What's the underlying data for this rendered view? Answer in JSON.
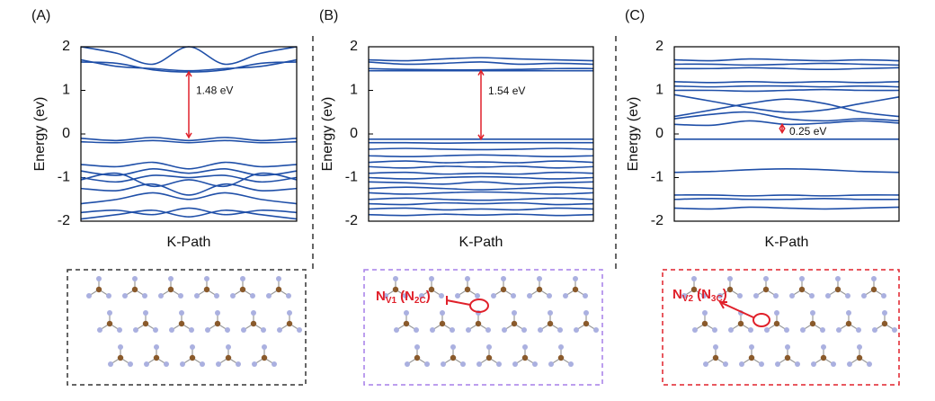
{
  "chart_data": [
    {
      "type": "line",
      "title": "(A)",
      "xlabel": "K-Path",
      "ylabel": "Energy (ev)",
      "categories": [
        null,
        null,
        null,
        null,
        null,
        null,
        null
      ],
      "ylim": [
        -2,
        2
      ],
      "yticks": [
        -2,
        -1,
        0,
        1,
        2
      ],
      "series": [
        {
          "color": "#1f4fa8",
          "values": [
            1.65,
            1.62,
            1.47,
            1.42,
            1.47,
            1.62,
            1.65
          ]
        },
        {
          "color": "#1f4fa8",
          "values": [
            2.0,
            1.85,
            1.6,
            2.0,
            1.6,
            1.85,
            2.0
          ]
        },
        {
          "color": "#1f4fa8",
          "values": [
            1.7,
            1.55,
            1.5,
            1.45,
            1.5,
            1.55,
            1.7
          ]
        },
        {
          "color": "#1f4fa8",
          "values": [
            -0.1,
            -0.15,
            -0.08,
            -0.15,
            -0.08,
            -0.15,
            -0.1
          ]
        },
        {
          "color": "#1f4fa8",
          "values": [
            -0.18,
            -0.2,
            -0.15,
            -0.2,
            -0.15,
            -0.2,
            -0.18
          ]
        },
        {
          "color": "#1f4fa8",
          "values": [
            -0.7,
            -0.75,
            -0.65,
            -0.8,
            -0.65,
            -0.75,
            -0.7
          ]
        },
        {
          "color": "#1f4fa8",
          "values": [
            -0.85,
            -0.95,
            -0.8,
            -0.9,
            -0.8,
            -0.95,
            -0.85
          ]
        },
        {
          "color": "#1f4fa8",
          "values": [
            -1.0,
            -1.1,
            -0.95,
            -1.0,
            -0.95,
            -1.1,
            -1.0
          ]
        },
        {
          "color": "#1f4fa8",
          "values": [
            -1.05,
            -0.9,
            -1.2,
            -1.05,
            -1.2,
            -0.9,
            -1.05
          ]
        },
        {
          "color": "#1f4fa8",
          "values": [
            -1.25,
            -1.3,
            -1.15,
            -1.4,
            -1.15,
            -1.3,
            -1.25
          ]
        },
        {
          "color": "#1f4fa8",
          "values": [
            -1.6,
            -1.5,
            -1.35,
            -1.5,
            -1.35,
            -1.5,
            -1.6
          ]
        },
        {
          "color": "#1f4fa8",
          "values": [
            -1.8,
            -1.75,
            -1.85,
            -1.7,
            -1.85,
            -1.75,
            -1.8
          ]
        },
        {
          "color": "#1f4fa8",
          "values": [
            -1.95,
            -1.85,
            -1.75,
            -1.9,
            -1.75,
            -1.85,
            -1.95
          ]
        }
      ],
      "annotation": {
        "text": "1.48 eV",
        "from": -0.08,
        "to": 1.42,
        "color": "#e0202a"
      }
    },
    {
      "type": "line",
      "title": "(B)",
      "xlabel": "K-Path",
      "ylabel": "Energy (ev)",
      "categories": [
        null,
        null,
        null,
        null,
        null,
        null,
        null
      ],
      "ylim": [
        -2,
        2
      ],
      "yticks": [
        -2,
        -1,
        0,
        1,
        2
      ],
      "series": [
        {
          "color": "#1f4fa8",
          "values": [
            1.7,
            1.68,
            1.72,
            1.75,
            1.72,
            1.7,
            1.68
          ]
        },
        {
          "color": "#1f4fa8",
          "values": [
            1.65,
            1.6,
            1.62,
            1.65,
            1.6,
            1.62,
            1.6
          ]
        },
        {
          "color": "#1f4fa8",
          "values": [
            1.5,
            1.48,
            1.47,
            1.47,
            1.48,
            1.5,
            1.5
          ]
        },
        {
          "color": "#1f4fa8",
          "values": [
            1.45,
            1.45,
            1.45,
            1.45,
            1.45,
            1.45,
            1.45
          ]
        },
        {
          "color": "#1f4fa8",
          "values": [
            -0.12,
            -0.12,
            -0.12,
            -0.12,
            -0.12,
            -0.12,
            -0.12
          ]
        },
        {
          "color": "#1f4fa8",
          "values": [
            -0.2,
            -0.2,
            -0.21,
            -0.2,
            -0.2,
            -0.2,
            -0.2
          ]
        },
        {
          "color": "#1f4fa8",
          "values": [
            -0.35,
            -0.33,
            -0.35,
            -0.36,
            -0.35,
            -0.33,
            -0.35
          ]
        },
        {
          "color": "#1f4fa8",
          "values": [
            -0.5,
            -0.52,
            -0.5,
            -0.48,
            -0.5,
            -0.52,
            -0.5
          ]
        },
        {
          "color": "#1f4fa8",
          "values": [
            -0.65,
            -0.62,
            -0.66,
            -0.64,
            -0.66,
            -0.62,
            -0.65
          ]
        },
        {
          "color": "#1f4fa8",
          "values": [
            -0.75,
            -0.78,
            -0.74,
            -0.76,
            -0.74,
            -0.78,
            -0.75
          ]
        },
        {
          "color": "#1f4fa8",
          "values": [
            -0.9,
            -0.88,
            -0.92,
            -0.9,
            -0.92,
            -0.88,
            -0.9
          ]
        },
        {
          "color": "#1f4fa8",
          "values": [
            -1.0,
            -1.03,
            -1.0,
            -0.98,
            -1.0,
            -1.03,
            -1.0
          ]
        },
        {
          "color": "#1f4fa8",
          "values": [
            -1.1,
            -1.12,
            -1.15,
            -1.1,
            -1.15,
            -1.12,
            -1.1
          ]
        },
        {
          "color": "#1f4fa8",
          "values": [
            -1.25,
            -1.22,
            -1.25,
            -1.28,
            -1.25,
            -1.22,
            -1.25
          ]
        },
        {
          "color": "#1f4fa8",
          "values": [
            -1.35,
            -1.38,
            -1.35,
            -1.33,
            -1.35,
            -1.38,
            -1.35
          ]
        },
        {
          "color": "#1f4fa8",
          "values": [
            -1.5,
            -1.47,
            -1.5,
            -1.52,
            -1.5,
            -1.47,
            -1.5
          ]
        },
        {
          "color": "#1f4fa8",
          "values": [
            -1.6,
            -1.62,
            -1.58,
            -1.6,
            -1.58,
            -1.62,
            -1.6
          ]
        },
        {
          "color": "#1f4fa8",
          "values": [
            -1.72,
            -1.7,
            -1.74,
            -1.72,
            -1.74,
            -1.7,
            -1.72
          ]
        },
        {
          "color": "#1f4fa8",
          "values": [
            -1.85,
            -1.87,
            -1.84,
            -1.86,
            -1.84,
            -1.87,
            -1.85
          ]
        }
      ],
      "annotation": {
        "text": "1.54 eV",
        "from": -0.12,
        "to": 1.45,
        "color": "#e0202a"
      }
    },
    {
      "type": "line",
      "title": "(C)",
      "xlabel": "K-Path",
      "ylabel": "Energy (ev)",
      "categories": [
        null,
        null,
        null,
        null,
        null,
        null,
        null
      ],
      "ylim": [
        -2,
        2
      ],
      "yticks": [
        -2,
        -1,
        0,
        1,
        2
      ],
      "series": [
        {
          "color": "#1f4fa8",
          "values": [
            1.7,
            1.68,
            1.72,
            1.7,
            1.68,
            1.7,
            1.68
          ]
        },
        {
          "color": "#1f4fa8",
          "values": [
            1.6,
            1.6,
            1.58,
            1.6,
            1.62,
            1.6,
            1.58
          ]
        },
        {
          "color": "#1f4fa8",
          "values": [
            1.5,
            1.5,
            1.52,
            1.5,
            1.48,
            1.5,
            1.52
          ]
        },
        {
          "color": "#1f4fa8",
          "values": [
            1.2,
            1.18,
            1.2,
            1.18,
            1.2,
            1.18,
            1.2
          ]
        },
        {
          "color": "#1f4fa8",
          "values": [
            1.1,
            1.08,
            1.1,
            1.1,
            1.08,
            1.1,
            1.08
          ]
        },
        {
          "color": "#1f4fa8",
          "values": [
            1.0,
            1.0,
            0.98,
            1.0,
            1.02,
            1.0,
            1.0
          ]
        },
        {
          "color": "#1f4fa8",
          "values": [
            0.9,
            0.75,
            0.6,
            0.5,
            0.55,
            0.7,
            0.85
          ]
        },
        {
          "color": "#1f4fa8",
          "values": [
            0.4,
            0.55,
            0.7,
            0.8,
            0.7,
            0.5,
            0.4
          ]
        },
        {
          "color": "#1f4fa8",
          "values": [
            0.35,
            0.45,
            0.5,
            0.35,
            0.3,
            0.35,
            0.3
          ]
        },
        {
          "color": "#1f4fa8",
          "values": [
            0.22,
            0.2,
            0.3,
            0.22,
            0.25,
            0.3,
            0.25
          ]
        },
        {
          "color": "#1f4fa8",
          "values": [
            -0.12,
            -0.12,
            -0.12,
            -0.12,
            -0.12,
            -0.12,
            -0.12
          ]
        },
        {
          "color": "#1f4fa8",
          "values": [
            -0.88,
            -0.86,
            -0.82,
            -0.8,
            -0.82,
            -0.86,
            -0.88
          ]
        },
        {
          "color": "#1f4fa8",
          "values": [
            -1.4,
            -1.4,
            -1.42,
            -1.4,
            -1.42,
            -1.4,
            -1.4
          ]
        },
        {
          "color": "#1f4fa8",
          "values": [
            -1.5,
            -1.48,
            -1.5,
            -1.5,
            -1.48,
            -1.5,
            -1.5
          ]
        },
        {
          "color": "#1f4fa8",
          "values": [
            -1.7,
            -1.72,
            -1.68,
            -1.7,
            -1.72,
            -1.7,
            -1.68
          ]
        }
      ],
      "annotation": {
        "text": "0.25 eV",
        "from": 0.03,
        "to": 0.22,
        "color": "#e0202a"
      }
    }
  ],
  "structure_labels": [
    [
      "N",
      "V1",
      "(N",
      "2C",
      ")"
    ],
    [
      "N",
      "V2",
      "(N",
      "3C",
      ")"
    ]
  ]
}
